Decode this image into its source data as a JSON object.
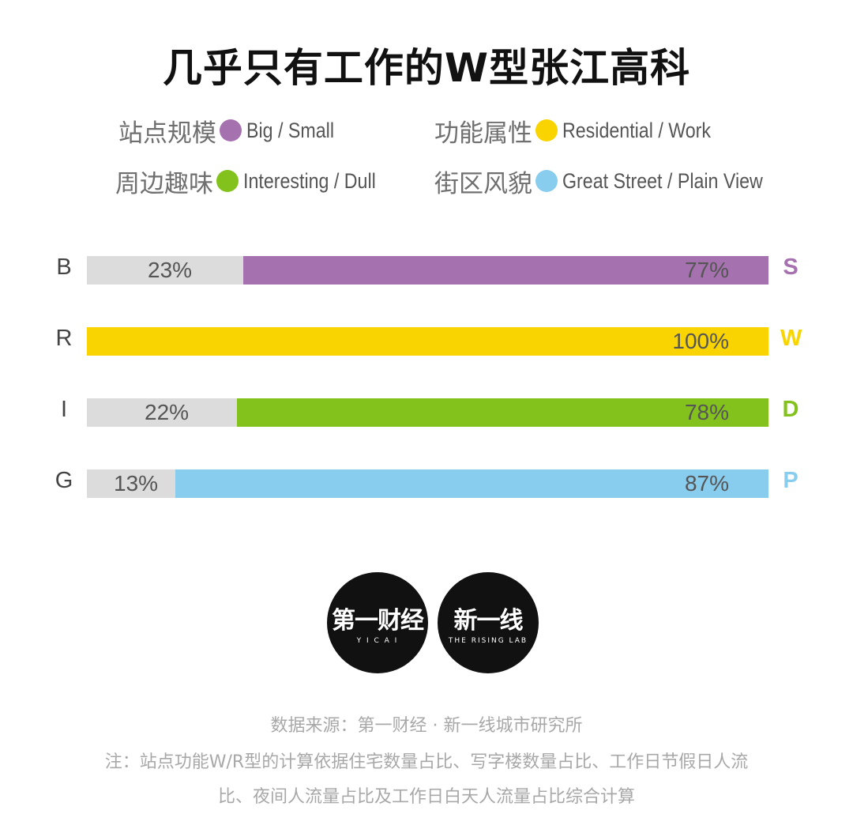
{
  "title": "几乎只有工作的W型张江高科",
  "legend": [
    {
      "cn": "站点规模",
      "en": "Big / Small",
      "color": "#a571ae"
    },
    {
      "cn": "功能属性",
      "en": "Residential / Work",
      "color": "#f9d400"
    },
    {
      "cn": "周边趣味",
      "en": "Interesting / Dull",
      "color": "#83c21d"
    },
    {
      "cn": "街区风貌",
      "en": "Great Street / Plain View",
      "color": "#88cdee"
    }
  ],
  "chart_data": {
    "type": "bar",
    "orientation": "horizontal",
    "stacked": true,
    "rows": [
      {
        "left_label": "B",
        "right_label": "S",
        "left_value": 23,
        "right_value": 77,
        "left_text": "23%",
        "right_text": "77%",
        "color": "#a571ae"
      },
      {
        "left_label": "R",
        "right_label": "W",
        "left_value": 0,
        "right_value": 100,
        "left_text": "",
        "right_text": "100%",
        "color": "#f9d400"
      },
      {
        "left_label": "I",
        "right_label": "D",
        "left_value": 22,
        "right_value": 78,
        "left_text": "22%",
        "right_text": "78%",
        "color": "#83c21d"
      },
      {
        "left_label": "G",
        "right_label": "P",
        "left_value": 13,
        "right_value": 87,
        "left_text": "13%",
        "right_text": "87%",
        "color": "#88cdee"
      }
    ],
    "left_color": "#dcdcdc",
    "xlim": [
      0,
      100
    ],
    "legend_placement": "top"
  },
  "logos": [
    {
      "main": "第一财经",
      "sub": "Y I C A I"
    },
    {
      "main": "新一线",
      "sub": "THE RISING LAB"
    }
  ],
  "footer": {
    "source": "数据来源：第一财经 · 新一线城市研究所",
    "note_line1": "注：站点功能W/R型的计算依据住宅数量占比、写字楼数量占比、工作日节假日人流",
    "note_line2": "比、夜间人流量占比及工作日白天人流量占比综合计算"
  }
}
